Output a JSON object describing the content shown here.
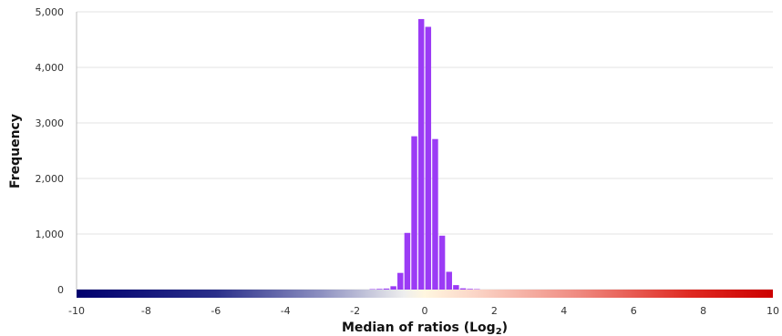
{
  "chart_data": {
    "type": "bar",
    "title": "",
    "xlabel": "Median of ratios (Log",
    "xlabel_subscript": "2",
    "xlabel_suffix": ")",
    "ylabel": "Frequency",
    "xlim": [
      -10,
      10
    ],
    "ylim": [
      0,
      5000
    ],
    "grid": true,
    "legend": "none",
    "colors": {
      "bar": "#9b3bf5",
      "grid": "#e3e3e3",
      "axis": "#bdbdbd",
      "gradient": [
        "#00006e",
        "#ffffff",
        "#fff8e6",
        "#d40000"
      ]
    },
    "y_ticks": [
      {
        "value": 0,
        "label": "0"
      },
      {
        "value": 1000,
        "label": "1,000"
      },
      {
        "value": 2000,
        "label": "2,000"
      },
      {
        "value": 3000,
        "label": "3,000"
      },
      {
        "value": 4000,
        "label": "4,000"
      },
      {
        "value": 5000,
        "label": "5,000"
      }
    ],
    "x_ticks": [
      {
        "value": -10,
        "label": "-10"
      },
      {
        "value": -8,
        "label": "-8"
      },
      {
        "value": -6,
        "label": "-6"
      },
      {
        "value": -4,
        "label": "-4"
      },
      {
        "value": -2,
        "label": "-2"
      },
      {
        "value": 0,
        "label": "0"
      },
      {
        "value": 2,
        "label": "2"
      },
      {
        "value": 4,
        "label": "4"
      },
      {
        "value": 6,
        "label": "6"
      },
      {
        "value": 8,
        "label": "8"
      },
      {
        "value": 10,
        "label": "10"
      }
    ],
    "bin_width": 0.2,
    "bins": [
      {
        "x": -1.6,
        "y": 8
      },
      {
        "x": -1.4,
        "y": 12
      },
      {
        "x": -1.2,
        "y": 18
      },
      {
        "x": -1.0,
        "y": 60
      },
      {
        "x": -0.8,
        "y": 300
      },
      {
        "x": -0.6,
        "y": 1020
      },
      {
        "x": -0.4,
        "y": 2760
      },
      {
        "x": -0.2,
        "y": 4870
      },
      {
        "x": 0.0,
        "y": 4730
      },
      {
        "x": 0.2,
        "y": 2710
      },
      {
        "x": 0.4,
        "y": 970
      },
      {
        "x": 0.6,
        "y": 320
      },
      {
        "x": 0.8,
        "y": 80
      },
      {
        "x": 1.0,
        "y": 22
      },
      {
        "x": 1.2,
        "y": 12
      },
      {
        "x": 1.4,
        "y": 8
      }
    ]
  }
}
